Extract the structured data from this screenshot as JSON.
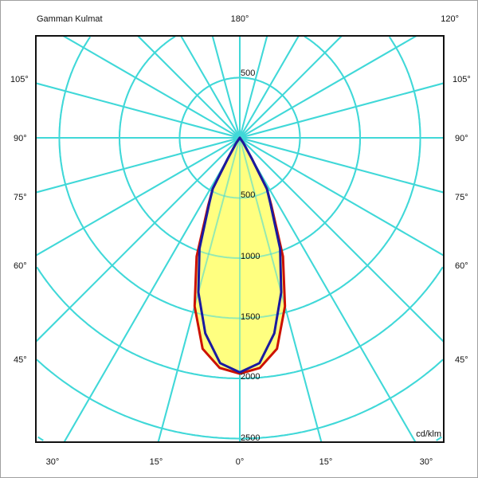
{
  "chart_data": {
    "type": "polar",
    "title": "Gamman Kulmat",
    "unit_label": "cd/klm",
    "top_labels": [
      "180°",
      "120°"
    ],
    "left_angle_labels": [
      "105°",
      "90°",
      "75°",
      "60°",
      "45°"
    ],
    "right_angle_labels": [
      "105°",
      "90°",
      "75°",
      "60°",
      "45°"
    ],
    "bottom_angle_labels": [
      "30°",
      "15°",
      "0°",
      "15°",
      "30°"
    ],
    "radial_ticks_upper": [
      "500"
    ],
    "radial_ticks_lower": [
      "500",
      "1000",
      "1500",
      "2000",
      "2500"
    ],
    "radial_range": [
      0,
      3000
    ],
    "radial_step": 500,
    "spoke_step_deg": 15,
    "gamma": [
      0,
      5,
      10,
      15,
      20,
      25,
      28,
      30,
      35,
      40,
      90
    ],
    "series": [
      {
        "color": "#cc1100",
        "values": [
          1960,
          1920,
          1780,
          1450,
          1050,
          620,
          480,
          200,
          50,
          0,
          0
        ]
      },
      {
        "color": "#1a1aa0",
        "values": [
          1950,
          1880,
          1650,
          1330,
          980,
          600,
          480,
          200,
          50,
          0,
          0
        ]
      }
    ],
    "fill_color": "#ffff80",
    "grid_color": "#40d8d8",
    "grid": true
  }
}
